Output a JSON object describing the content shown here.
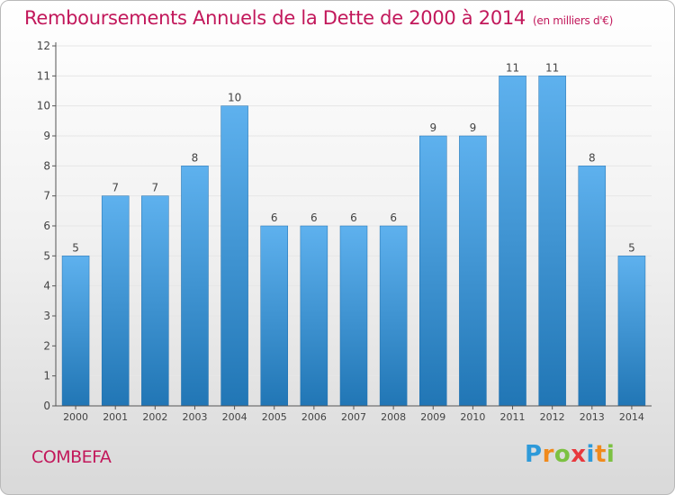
{
  "header": {
    "title": "Remboursements Annuels de la Dette de 2000 à 2014",
    "subtitle": "(en milliers d'€)"
  },
  "footer": {
    "commune": "COMBEFA"
  },
  "logo": {
    "text": "Proxiti",
    "letters": [
      {
        "ch": "P",
        "color": "#2e9ad9"
      },
      {
        "ch": "r",
        "color": "#f08a1c"
      },
      {
        "ch": "o",
        "color": "#7cc142"
      },
      {
        "ch": "x",
        "color": "#e8383d"
      },
      {
        "ch": "i",
        "color": "#2e9ad9"
      },
      {
        "ch": "t",
        "color": "#f08a1c"
      },
      {
        "ch": "i",
        "color": "#7cc142"
      }
    ]
  },
  "colors": {
    "bar_top": "#5eb1ee",
    "bar_bottom": "#2176b5",
    "axis": "#555555",
    "grid": "#e6e6e6",
    "text": "#444444",
    "accent": "#c2185b"
  },
  "chart_data": {
    "type": "bar",
    "title": "Remboursements Annuels de la Dette de 2000 à 2014",
    "subtitle": "(en milliers d'€)",
    "categories": [
      "2000",
      "2001",
      "2002",
      "2003",
      "2004",
      "2005",
      "2006",
      "2007",
      "2008",
      "2009",
      "2010",
      "2011",
      "2012",
      "2013",
      "2014"
    ],
    "values": [
      5,
      7,
      7,
      8,
      10,
      6,
      6,
      6,
      6,
      9,
      9,
      11,
      11,
      8,
      5
    ],
    "ylim": [
      0,
      12
    ],
    "yticks": [
      0,
      1,
      2,
      3,
      4,
      5,
      6,
      7,
      8,
      9,
      10,
      11,
      12
    ],
    "xlabel": "",
    "ylabel": "",
    "grid": true,
    "data_labels": true
  }
}
